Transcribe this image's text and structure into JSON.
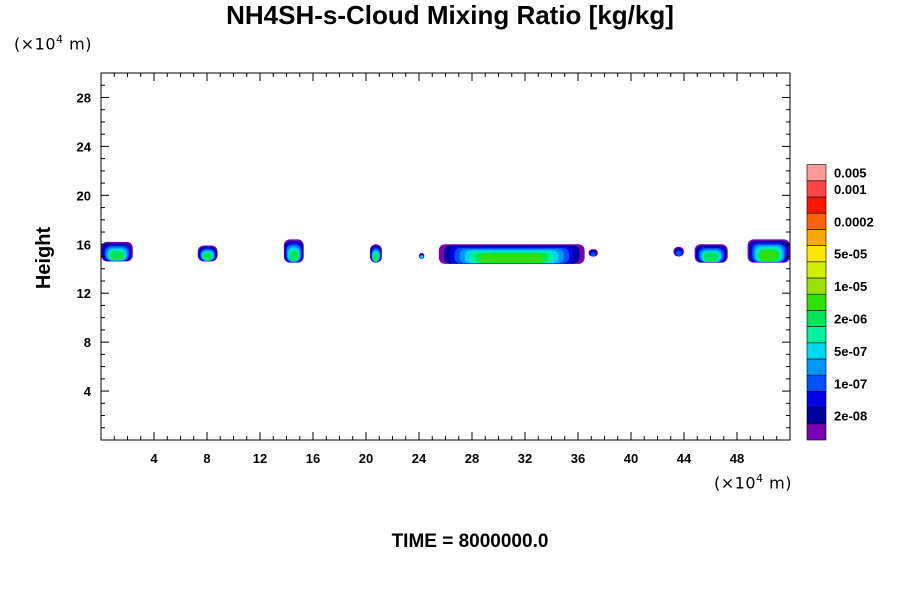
{
  "chart_data": {
    "type": "contour",
    "title": "NH4SH-s-Cloud Mixing Ratio [kg/kg]",
    "ylabel": "Height",
    "xunit_label": [
      "(×10",
      "4",
      " m)"
    ],
    "yunit_label": [
      "(×10",
      "4",
      " m)"
    ],
    "time_label": "TIME = 8000000.0",
    "xlim": [
      0,
      52
    ],
    "ylim": [
      0,
      30
    ],
    "xticks": [
      4,
      8,
      12,
      16,
      20,
      24,
      28,
      32,
      36,
      40,
      44,
      48
    ],
    "yticks": [
      4,
      8,
      12,
      16,
      20,
      24,
      28
    ],
    "colorbar": {
      "colors": [
        "#7a00b0",
        "#00009c",
        "#0000e6",
        "#0050ff",
        "#0096ff",
        "#00d7f0",
        "#00f0a0",
        "#00e35a",
        "#30e000",
        "#9ae000",
        "#d0f000",
        "#ffe600",
        "#ffa800",
        "#ff6400",
        "#ff1400",
        "#ff4646",
        "#ff9a9a"
      ],
      "labels": [
        "2e-08",
        "1e-07",
        "5e-07",
        "2e-06",
        "1e-05",
        "5e-05",
        "0.0002",
        "0.001",
        "0.005"
      ],
      "label_bands": [
        1,
        3,
        5,
        7,
        9,
        11,
        13,
        15,
        16
      ]
    },
    "cloud_patches": [
      {
        "x": [
          0.0,
          2.4
        ],
        "y": [
          14.6,
          16.2
        ],
        "peak_level": 7
      },
      {
        "x": [
          7.3,
          8.8
        ],
        "y": [
          14.6,
          15.9
        ],
        "peak_level": 7
      },
      {
        "x": [
          13.8,
          15.3
        ],
        "y": [
          14.5,
          16.4
        ],
        "peak_level": 7
      },
      {
        "x": [
          20.3,
          21.2
        ],
        "y": [
          14.5,
          16.0
        ],
        "peak_level": 7
      },
      {
        "x": [
          24.0,
          24.4
        ],
        "y": [
          14.8,
          15.3
        ],
        "peak_level": 5
      },
      {
        "x": [
          25.5,
          36.5
        ],
        "y": [
          14.4,
          16.0
        ],
        "peak_level": 8
      },
      {
        "x": [
          36.8,
          37.5
        ],
        "y": [
          15.0,
          15.6
        ],
        "peak_level": 3
      },
      {
        "x": [
          43.2,
          44.0
        ],
        "y": [
          15.0,
          15.8
        ],
        "peak_level": 3
      },
      {
        "x": [
          44.8,
          47.3
        ],
        "y": [
          14.5,
          16.0
        ],
        "peak_level": 7
      },
      {
        "x": [
          48.8,
          52.0
        ],
        "y": [
          14.5,
          16.4
        ],
        "peak_level": 8
      }
    ]
  }
}
